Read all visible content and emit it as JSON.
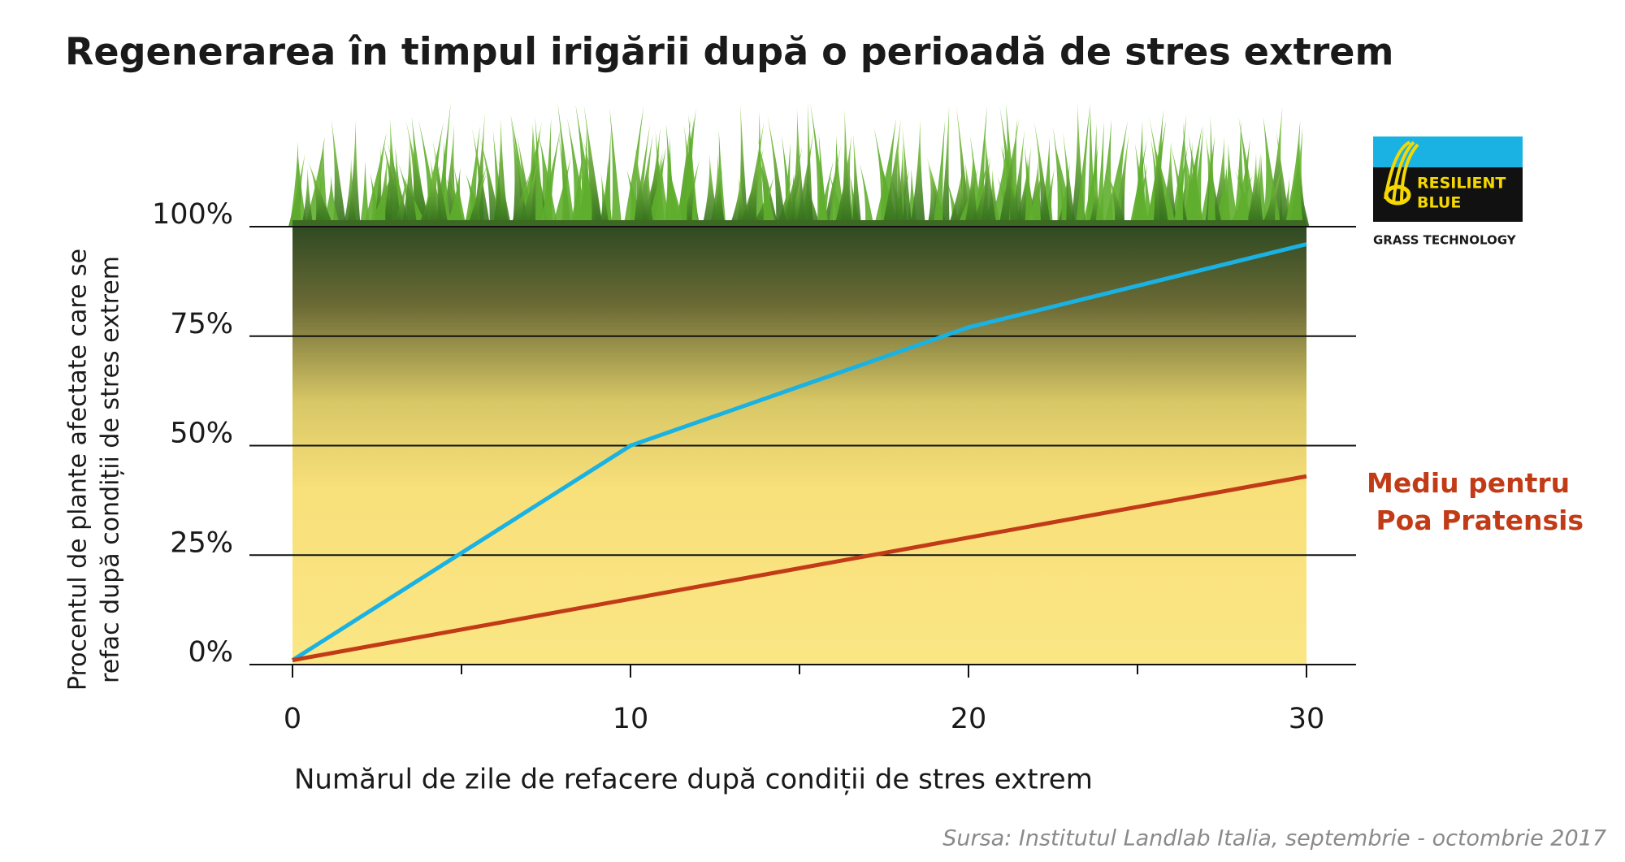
{
  "chart_data": {
    "type": "line",
    "title": "Regenerarea în timpul irigării după o perioadă de stres extrem",
    "xlabel": "Numărul de zile de refacere după condiții de stres extrem",
    "ylabel": [
      "Procentul de plante afectate care se",
      "refac după condiții de stres extrem"
    ],
    "x": [
      0,
      10,
      20,
      30
    ],
    "series": [
      {
        "color": "#1ab2e2",
        "values": [
          1,
          50,
          77,
          96
        ]
      },
      {
        "name": "Mediu pentru Poa Pratensis",
        "color": "#c23b17",
        "values": [
          1,
          15,
          29,
          43
        ]
      }
    ],
    "xlim": [
      0,
      30
    ],
    "xticks": [
      0,
      10,
      20,
      30
    ],
    "xminorticks": [
      5,
      15,
      25
    ],
    "ylim": [
      0,
      100
    ],
    "yticks": [
      {
        "value": 0,
        "label": "0%"
      },
      {
        "value": 25,
        "label": "25%"
      },
      {
        "value": 50,
        "label": "50%"
      },
      {
        "value": 75,
        "label": "75%"
      },
      {
        "value": 100,
        "label": "100%"
      }
    ],
    "grid": true,
    "source": "Sursa: Institutul Landlab Italia, septembrie - octombrie 2017",
    "logo": {
      "lines": [
        "RESILIENT",
        "BLUE"
      ],
      "tagline": "GRASS TECHNOLOGY"
    }
  }
}
